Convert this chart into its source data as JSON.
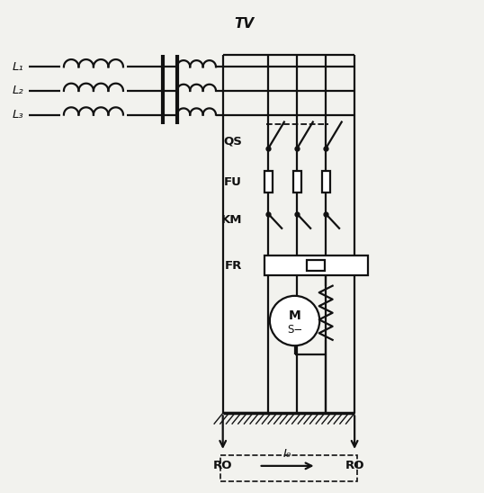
{
  "bg_color": "#f2f2ee",
  "line_color": "#111111",
  "title": "TV",
  "label_L1": "L₁",
  "label_L2": "L₂",
  "label_L3": "L₃",
  "label_QS": "QS",
  "label_FU": "FU",
  "label_KM": "KM",
  "label_FR": "FR",
  "label_M": "M",
  "label_S": "S−",
  "label_RO": "RO",
  "label_I0": "I₀",
  "fig_width": 5.38,
  "fig_height": 5.48,
  "dpi": 100
}
